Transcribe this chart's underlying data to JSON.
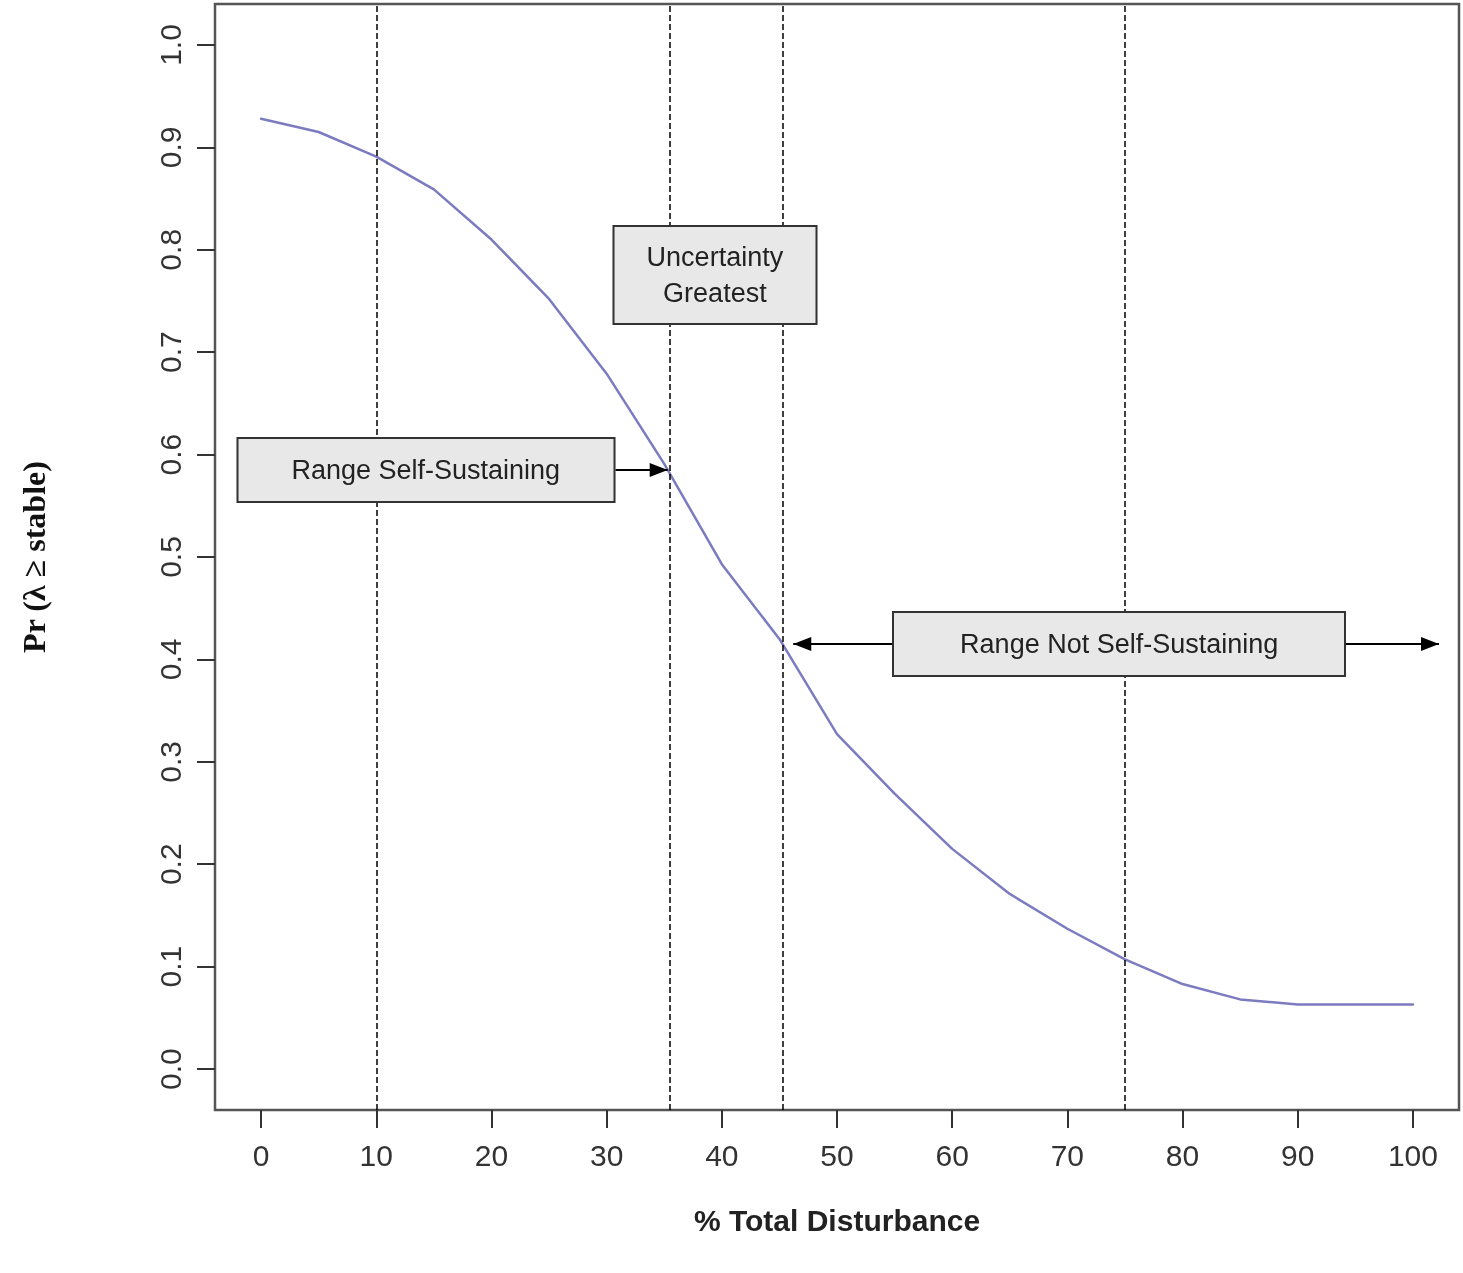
{
  "chart_data": {
    "type": "line",
    "xlabel": "% Total Disturbance",
    "ylabel": "Pr (λ ≥ stable)",
    "x": [
      0,
      5,
      10,
      15,
      20,
      25,
      30,
      35,
      40,
      45,
      50,
      55,
      60,
      65,
      70,
      75,
      80,
      85,
      90,
      95,
      100
    ],
    "series": [
      {
        "color": "#7b7bc0",
        "values": [
          0.928,
          0.915,
          0.891,
          0.859,
          0.81,
          0.752,
          0.679,
          0.591,
          0.493,
          0.42,
          0.327,
          0.269,
          0.215,
          0.171,
          0.137,
          0.107,
          0.083,
          0.068,
          0.063,
          0.063,
          0.063
        ]
      }
    ],
    "xlim": [
      -4,
      104
    ],
    "ylim": [
      -0.04,
      1.04
    ],
    "xticks": [
      0,
      10,
      20,
      30,
      40,
      50,
      60,
      70,
      80,
      90,
      100
    ],
    "yticks": [
      {
        "value": 0,
        "label": "0.0"
      },
      0.1,
      0.2,
      0.3,
      0.4,
      0.5,
      0.6,
      0.7,
      0.8,
      0.9,
      {
        "value": 1,
        "label": "1.0"
      }
    ],
    "ref_lines": [
      {
        "axis": "x",
        "value": 10,
        "line_style": "dashed",
        "color": "#000000"
      },
      {
        "axis": "x",
        "value": 35.5,
        "line_style": "dashed",
        "color": "#000000"
      },
      {
        "axis": "x",
        "value": 45.3,
        "line_style": "dashed",
        "color": "#000000"
      },
      {
        "axis": "x",
        "value": 75,
        "line_style": "dashed",
        "color": "#000000"
      }
    ],
    "annotations": [
      "Uncertainty Greatest",
      "Range Self-Sustaining",
      "Range Not Self-Sustaining"
    ],
    "grid": false,
    "marker": "none",
    "line_style": "solid"
  }
}
